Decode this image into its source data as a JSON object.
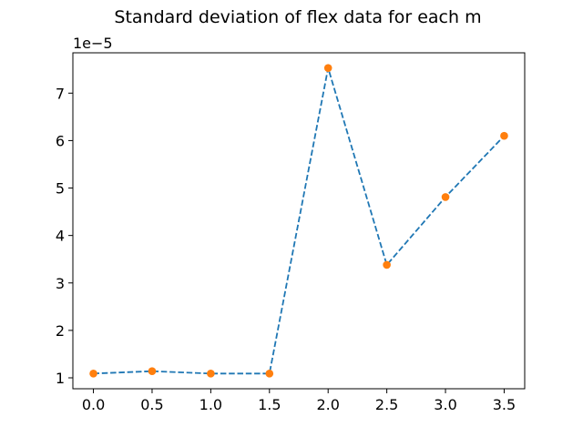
{
  "chart_data": {
    "type": "line",
    "title": "Standard deviation of flex data for each m",
    "xlabel": "",
    "ylabel": "",
    "y_offset_label": "1e−5",
    "x": [
      0.0,
      0.5,
      1.0,
      1.5,
      2.0,
      2.5,
      3.0,
      3.5
    ],
    "series": [
      {
        "values": [
          1.09,
          1.14,
          1.09,
          1.09,
          7.53,
          3.38,
          4.81,
          6.1
        ],
        "line_color": "#1f77b4",
        "line_style": "dashed",
        "marker_color": "#ff7f0e"
      }
    ],
    "xlim": [
      -0.175,
      3.675
    ],
    "ylim": [
      0.77,
      7.85
    ],
    "x_ticks": [
      0.0,
      0.5,
      1.0,
      1.5,
      2.0,
      2.5,
      3.0,
      3.5
    ],
    "x_tick_labels": [
      "0.0",
      "0.5",
      "1.0",
      "1.5",
      "2.0",
      "2.5",
      "3.0",
      "3.5"
    ],
    "y_ticks": [
      1,
      2,
      3,
      4,
      5,
      6,
      7
    ],
    "y_tick_labels": [
      "1",
      "2",
      "3",
      "4",
      "5",
      "6",
      "7"
    ],
    "grid": false,
    "legend": "none"
  }
}
